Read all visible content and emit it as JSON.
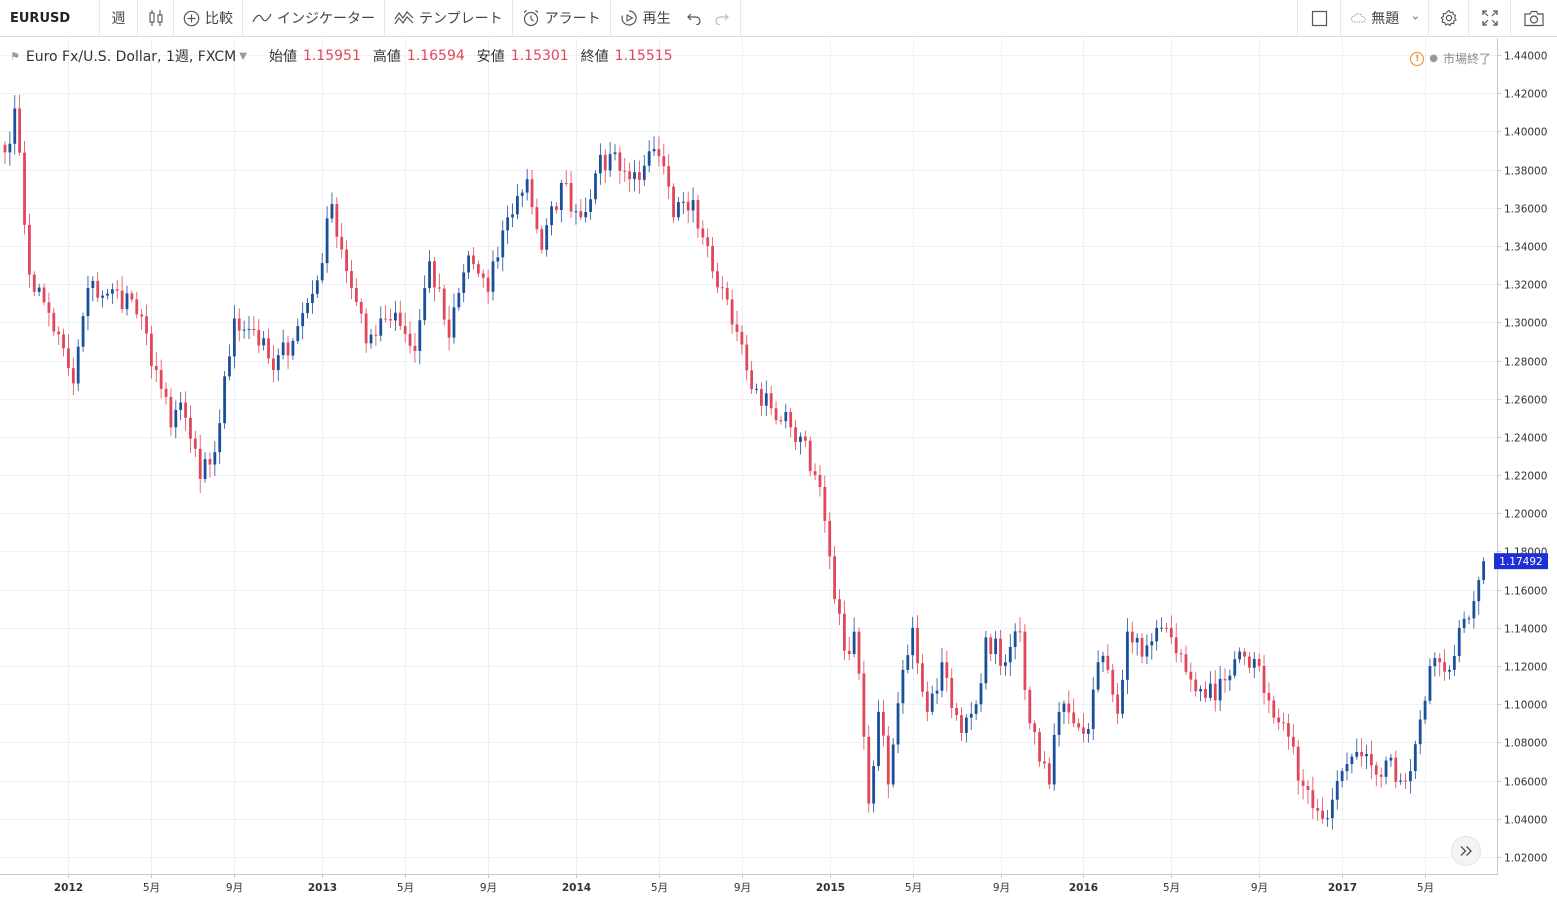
{
  "toolbar": {
    "symbol": "EURUSD",
    "interval": "週",
    "chart_type_icon": "candles-icon",
    "compare": "比較",
    "indicators": "インジケーター",
    "templates": "テンプレート",
    "alert": "アラート",
    "replay": "再生",
    "layout_name": "無題"
  },
  "legend": {
    "title": "Euro Fx/U.S. Dollar, 1週, FXCM",
    "open_label": "始値",
    "open": "1.15951",
    "high_label": "高値",
    "high": "1.16594",
    "low_label": "安値",
    "low": "1.15301",
    "close_label": "終値",
    "close": "1.15515"
  },
  "market_status": "市場終了",
  "current_price": "1.17492",
  "colors": {
    "up": "#1a4f9c",
    "down": "#e0475a",
    "grid": "#eef0f3",
    "price_tag": "#1e2fd6",
    "axis_text": "#333333"
  },
  "chart_data": {
    "type": "candlestick",
    "symbol": "EURUSD",
    "interval": "1W",
    "y_ticks": [
      "1.44000",
      "1.42000",
      "1.40000",
      "1.38000",
      "1.36000",
      "1.34000",
      "1.32000",
      "1.30000",
      "1.28000",
      "1.26000",
      "1.24000",
      "1.22000",
      "1.20000",
      "1.18000",
      "1.16000",
      "1.14000",
      "1.12000",
      "1.10000",
      "1.08000",
      "1.06000",
      "1.04000",
      "1.02000"
    ],
    "ylim": [
      1.011,
      1.4505
    ],
    "x_ticks": [
      {
        "week": 13,
        "label": "2012"
      },
      {
        "week": 30,
        "label": "5月"
      },
      {
        "week": 47,
        "label": "9月"
      },
      {
        "week": 65,
        "label": "2013"
      },
      {
        "week": 82,
        "label": "5月"
      },
      {
        "week": 99,
        "label": "9月"
      },
      {
        "week": 117,
        "label": "2014"
      },
      {
        "week": 134,
        "label": "5月"
      },
      {
        "week": 151,
        "label": "9月"
      },
      {
        "week": 169,
        "label": "2015"
      },
      {
        "week": 186,
        "label": "5月"
      },
      {
        "week": 204,
        "label": "9月"
      },
      {
        "week": 221,
        "label": "2016"
      },
      {
        "week": 239,
        "label": "5月"
      },
      {
        "week": 257,
        "label": "9月"
      },
      {
        "week": 274,
        "label": "2017"
      },
      {
        "week": 291,
        "label": "5月"
      }
    ],
    "key_closes": [
      [
        0,
        1.389
      ],
      [
        2,
        1.412
      ],
      [
        5,
        1.325
      ],
      [
        9,
        1.305
      ],
      [
        14,
        1.268
      ],
      [
        17,
        1.318
      ],
      [
        21,
        1.315
      ],
      [
        26,
        1.312
      ],
      [
        31,
        1.275
      ],
      [
        34,
        1.245
      ],
      [
        36,
        1.258
      ],
      [
        40,
        1.218
      ],
      [
        43,
        1.232
      ],
      [
        47,
        1.302
      ],
      [
        51,
        1.296
      ],
      [
        55,
        1.275
      ],
      [
        60,
        1.298
      ],
      [
        64,
        1.322
      ],
      [
        67,
        1.362
      ],
      [
        71,
        1.318
      ],
      [
        74,
        1.289
      ],
      [
        77,
        1.302
      ],
      [
        80,
        1.305
      ],
      [
        84,
        1.285
      ],
      [
        87,
        1.332
      ],
      [
        91,
        1.292
      ],
      [
        95,
        1.335
      ],
      [
        99,
        1.316
      ],
      [
        103,
        1.355
      ],
      [
        107,
        1.375
      ],
      [
        110,
        1.338
      ],
      [
        114,
        1.373
      ],
      [
        118,
        1.355
      ],
      [
        121,
        1.378
      ],
      [
        125,
        1.389
      ],
      [
        128,
        1.375
      ],
      [
        131,
        1.382
      ],
      [
        134,
        1.387
      ],
      [
        137,
        1.355
      ],
      [
        141,
        1.364
      ],
      [
        144,
        1.34
      ],
      [
        147,
        1.318
      ],
      [
        150,
        1.295
      ],
      [
        153,
        1.265
      ],
      [
        157,
        1.255
      ],
      [
        161,
        1.245
      ],
      [
        164,
        1.238
      ],
      [
        166,
        1.22
      ],
      [
        168,
        1.196
      ],
      [
        170,
        1.155
      ],
      [
        172,
        1.128
      ],
      [
        174,
        1.138
      ],
      [
        176,
        1.083
      ],
      [
        177,
        1.048
      ],
      [
        179,
        1.096
      ],
      [
        181,
        1.058
      ],
      [
        184,
        1.118
      ],
      [
        186,
        1.14
      ],
      [
        189,
        1.096
      ],
      [
        192,
        1.122
      ],
      [
        194,
        1.098
      ],
      [
        196,
        1.085
      ],
      [
        199,
        1.1
      ],
      [
        201,
        1.135
      ],
      [
        205,
        1.122
      ],
      [
        208,
        1.138
      ],
      [
        210,
        1.09
      ],
      [
        212,
        1.07
      ],
      [
        214,
        1.058
      ],
      [
        216,
        1.096
      ],
      [
        219,
        1.09
      ],
      [
        222,
        1.087
      ],
      [
        224,
        1.122
      ],
      [
        226,
        1.118
      ],
      [
        228,
        1.095
      ],
      [
        230,
        1.138
      ],
      [
        233,
        1.125
      ],
      [
        236,
        1.14
      ],
      [
        239,
        1.135
      ],
      [
        242,
        1.117
      ],
      [
        245,
        1.108
      ],
      [
        248,
        1.102
      ],
      [
        251,
        1.115
      ],
      [
        254,
        1.125
      ],
      [
        257,
        1.12
      ],
      [
        260,
        1.093
      ],
      [
        263,
        1.083
      ],
      [
        265,
        1.06
      ],
      [
        267,
        1.055
      ],
      [
        270,
        1.04
      ],
      [
        272,
        1.05
      ],
      [
        274,
        1.065
      ],
      [
        277,
        1.075
      ],
      [
        280,
        1.068
      ],
      [
        282,
        1.062
      ],
      [
        284,
        1.072
      ],
      [
        286,
        1.06
      ],
      [
        288,
        1.065
      ],
      [
        290,
        1.092
      ],
      [
        292,
        1.12
      ],
      [
        294,
        1.122
      ],
      [
        296,
        1.118
      ],
      [
        298,
        1.14
      ],
      [
        300,
        1.145
      ],
      [
        302,
        1.165
      ],
      [
        303,
        1.1749
      ]
    ]
  }
}
